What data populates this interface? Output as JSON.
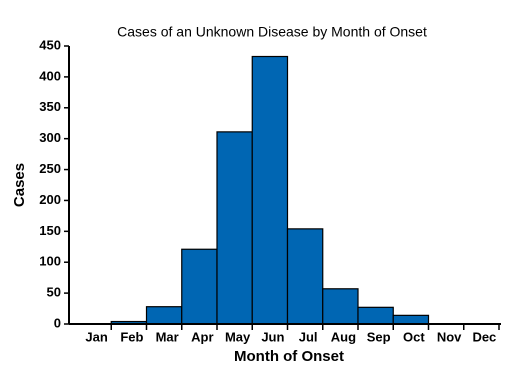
{
  "chart_data": {
    "type": "bar",
    "title": "Cases of an Unknown Disease by Month of Onset",
    "x_label": "Month of Onset",
    "y_label": "Cases",
    "categories": [
      "Jan",
      "Feb",
      "Mar",
      "Apr",
      "May",
      "Jun",
      "Jul",
      "Aug",
      "Sep",
      "Oct",
      "Nov",
      "Dec"
    ],
    "values": [
      0,
      4,
      28,
      121,
      311,
      433,
      154,
      57,
      27,
      14,
      0,
      0
    ],
    "color": "#0066b3",
    "ylim": [
      0,
      450
    ],
    "yticks": [
      0,
      50,
      100,
      150,
      200,
      250,
      300,
      350,
      400,
      450
    ],
    "grid": false
  }
}
